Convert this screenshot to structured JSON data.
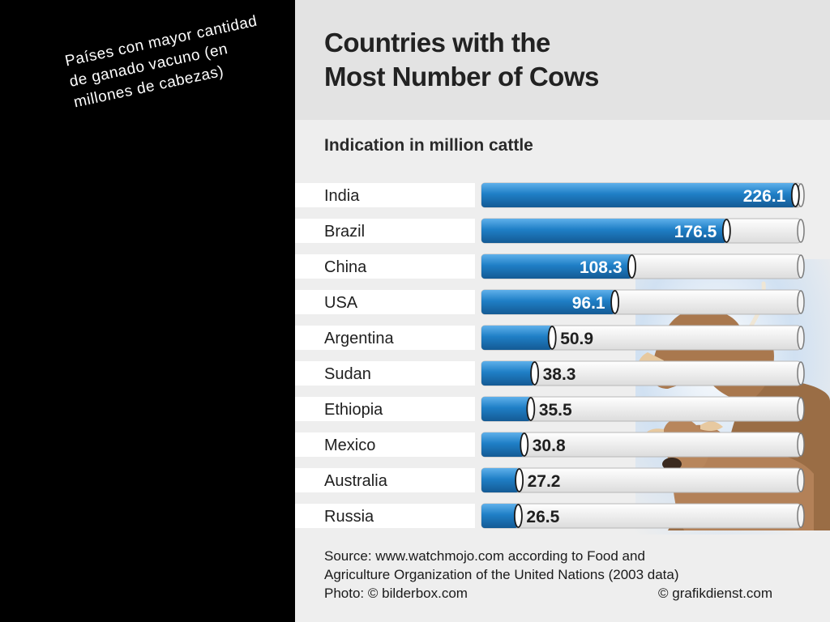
{
  "slide": {
    "side_caption": "Países con mayor cantidad de ganado vacuno (en millones de cabezas)"
  },
  "chart_data": {
    "type": "bar",
    "orientation": "horizontal",
    "title_line1": "Countries with the",
    "title_line2": "Most Number of Cows",
    "subtitle": "Indication in million cattle",
    "categories": [
      "India",
      "Brazil",
      "China",
      "USA",
      "Argentina",
      "Sudan",
      "Ethiopia",
      "Mexico",
      "Australia",
      "Russia"
    ],
    "values": [
      226.1,
      176.5,
      108.3,
      96.1,
      50.9,
      38.3,
      35.5,
      30.8,
      27.2,
      26.5
    ],
    "value_labels": [
      "226.1",
      "176.5",
      "108.3",
      "96.1",
      "50.9",
      "38.3",
      "35.5",
      "30.8",
      "27.2",
      "26.5"
    ],
    "xlim": [
      0,
      230
    ],
    "grid": false,
    "legend": "none",
    "bar_color": "#1f7fc6",
    "bar_highlight": "#5fb0ea",
    "track_color": "#ffffff"
  },
  "footer": {
    "source_line1": "Source: www.watchmojo.com according to Food and",
    "source_line2": "Agriculture Organization of the United Nations (2003 data)",
    "photo_credit": "Photo: © bilderbox.com",
    "copyright": "© grafikdienst.com"
  }
}
